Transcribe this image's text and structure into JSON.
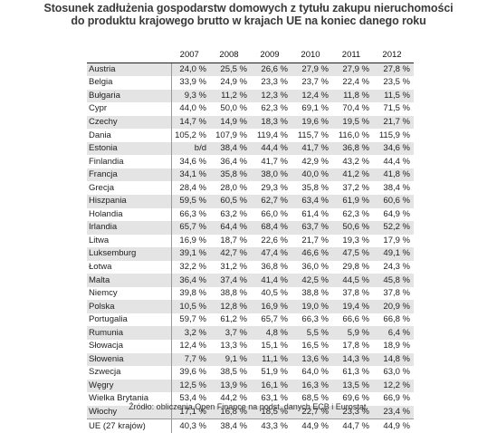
{
  "title": {
    "line1": "Stosunek zadłużenia gospodarstw domowych z tytułu zakupu nieruchomości",
    "line2": "do produktu krajowego brutto w krajach UE na koniec danego roku"
  },
  "table": {
    "years": [
      "2007",
      "2008",
      "2009",
      "2010",
      "2011",
      "2012"
    ],
    "rows": [
      {
        "country": "Austria",
        "values": [
          "24,0 %",
          "25,5 %",
          "26,6 %",
          "27,9 %",
          "27,9 %",
          "27,8 %"
        ]
      },
      {
        "country": "Belgia",
        "values": [
          "33,9 %",
          "24,9 %",
          "23,3 %",
          "23,7 %",
          "22,4 %",
          "23,5 %"
        ]
      },
      {
        "country": "Bułgaria",
        "values": [
          "9,3 %",
          "11,2 %",
          "12,3 %",
          "12,4 %",
          "11,8 %",
          "11,5 %"
        ]
      },
      {
        "country": "Cypr",
        "values": [
          "44,0 %",
          "50,0 %",
          "62,3 %",
          "69,1 %",
          "70,4 %",
          "71,5 %"
        ]
      },
      {
        "country": "Czechy",
        "values": [
          "14,7 %",
          "14,9 %",
          "18,3 %",
          "19,6 %",
          "19,5 %",
          "21,7 %"
        ]
      },
      {
        "country": "Dania",
        "values": [
          "105,2 %",
          "107,9 %",
          "119,4 %",
          "115,7 %",
          "116,0 %",
          "115,9 %"
        ]
      },
      {
        "country": "Estonia",
        "values": [
          "b/d",
          "38,4 %",
          "44,4 %",
          "41,7 %",
          "36,8 %",
          "34,6 %"
        ]
      },
      {
        "country": "Finlandia",
        "values": [
          "34,6 %",
          "36,4 %",
          "41,7 %",
          "42,9 %",
          "43,2 %",
          "44,4 %"
        ]
      },
      {
        "country": "Francja",
        "values": [
          "34,1 %",
          "35,8 %",
          "38,0 %",
          "40,0 %",
          "41,2 %",
          "41,8 %"
        ]
      },
      {
        "country": "Grecja",
        "values": [
          "28,4 %",
          "28,0 %",
          "29,3 %",
          "35,8 %",
          "37,2 %",
          "38,4 %"
        ]
      },
      {
        "country": "Hiszpania",
        "values": [
          "59,5 %",
          "60,5 %",
          "62,7 %",
          "63,4 %",
          "61,9 %",
          "60,6 %"
        ]
      },
      {
        "country": "Holandia",
        "values": [
          "66,3 %",
          "63,2 %",
          "66,0 %",
          "61,4 %",
          "62,3 %",
          "64,9 %"
        ]
      },
      {
        "country": "Irlandia",
        "values": [
          "65,7 %",
          "64,4 %",
          "68,4 %",
          "63,7 %",
          "50,6 %",
          "52,2 %"
        ]
      },
      {
        "country": "Litwa",
        "values": [
          "16,9 %",
          "18,7 %",
          "22,6 %",
          "21,7 %",
          "19,3 %",
          "17,9 %"
        ]
      },
      {
        "country": "Luksemburg",
        "values": [
          "39,1 %",
          "42,7 %",
          "47,4 %",
          "46,6 %",
          "47,5 %",
          "49,1 %"
        ]
      },
      {
        "country": "Łotwa",
        "values": [
          "32,2 %",
          "31,2 %",
          "36,8 %",
          "36,0 %",
          "29,8 %",
          "24,3 %"
        ]
      },
      {
        "country": "Malta",
        "values": [
          "36,4 %",
          "37,4 %",
          "41,4 %",
          "42,5 %",
          "44,5 %",
          "45,8 %"
        ]
      },
      {
        "country": "Niemcy",
        "values": [
          "39,8 %",
          "38,8 %",
          "40,5 %",
          "38,8 %",
          "37,8 %",
          "37,8 %"
        ]
      },
      {
        "country": "Polska",
        "values": [
          "10,5 %",
          "12,8 %",
          "16,9 %",
          "19,0 %",
          "19,4 %",
          "20,9 %"
        ]
      },
      {
        "country": "Portugalia",
        "values": [
          "59,7 %",
          "61,2 %",
          "65,7 %",
          "66,3 %",
          "66,6 %",
          "66,8 %"
        ]
      },
      {
        "country": "Rumunia",
        "values": [
          "3,2 %",
          "3,7 %",
          "4,8 %",
          "5,5 %",
          "5,9 %",
          "6,4 %"
        ]
      },
      {
        "country": "Słowacja",
        "values": [
          "12,4 %",
          "13,3 %",
          "15,1 %",
          "16,5 %",
          "17,8 %",
          "18,9 %"
        ]
      },
      {
        "country": "Słowenia",
        "values": [
          "7,7 %",
          "9,1 %",
          "11,1 %",
          "13,6 %",
          "14,3 %",
          "14,8 %"
        ]
      },
      {
        "country": "Szwecja",
        "values": [
          "39,6 %",
          "38,5 %",
          "51,9 %",
          "64,0 %",
          "61,3 %",
          "63,0 %"
        ]
      },
      {
        "country": "Węgry",
        "values": [
          "12,5 %",
          "13,9 %",
          "16,1 %",
          "16,3 %",
          "13,5 %",
          "12,2 %"
        ]
      },
      {
        "country": "Wielka Brytania",
        "values": [
          "53,4 %",
          "44,2 %",
          "63,1 %",
          "68,5 %",
          "69,6 %",
          "66,9 %"
        ]
      },
      {
        "country": "Włochy",
        "values": [
          "17,1 %",
          "16,8 %",
          "18,5 %",
          "22,7 %",
          "23,3 %",
          "23,4 %"
        ]
      },
      {
        "country": "UE (27 krajów)",
        "values": [
          "40,3 %",
          "38,4 %",
          "43,3 %",
          "44,9 %",
          "44,7 %",
          "44,9 %"
        ]
      }
    ]
  },
  "source": "Źródło: obliczenia Open Finance na podst. danych ECB i Eurostat."
}
